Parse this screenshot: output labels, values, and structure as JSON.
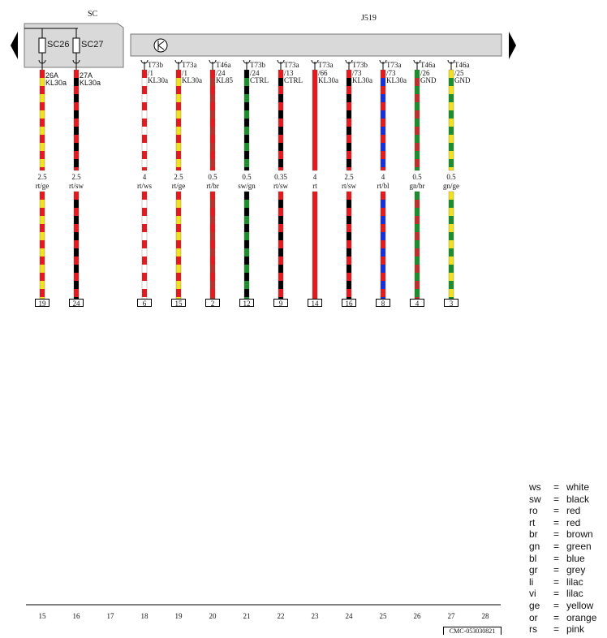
{
  "left_module": {
    "name": "SC",
    "fuses": [
      "SC26",
      "SC27"
    ]
  },
  "right_module": {
    "name": "J519"
  },
  "wires": [
    {
      "col": 0,
      "terminal": "26A",
      "signal": "KL30a",
      "size": "2.5",
      "color_code": "rt/ge",
      "pin": "19",
      "colors": [
        "#e8191c",
        "#f2e11c"
      ]
    },
    {
      "col": 1,
      "terminal": "27A",
      "signal": "KL30a",
      "size": "2.5",
      "color_code": "rt/sw",
      "pin": "24",
      "colors": [
        "#e8191c",
        "#000000"
      ]
    },
    {
      "col": 3,
      "connector": "T73b",
      "conn_pin": "/1",
      "signal": "KL30a",
      "size": "4",
      "color_code": "rt/ws",
      "pin": "6",
      "colors": [
        "#e8191c",
        "#ffffff"
      ]
    },
    {
      "col": 4,
      "connector": "T73a",
      "conn_pin": "/1",
      "signal": "KL30a",
      "size": "2.5",
      "color_code": "rt/ge",
      "pin": "15",
      "colors": [
        "#e8191c",
        "#f2e11c"
      ]
    },
    {
      "col": 5,
      "connector": "T46a",
      "conn_pin": "/24",
      "signal": "KL85",
      "size": "0.5",
      "color_code": "rt/br",
      "pin": "2",
      "colors": [
        "#e8191c",
        "#c0302a"
      ]
    },
    {
      "col": 6,
      "connector": "T73b",
      "conn_pin": "/24",
      "signal": "CTRL",
      "size": "0.5",
      "color_code": "sw/gn",
      "pin": "12",
      "colors": [
        "#000000",
        "#1a8f2b"
      ]
    },
    {
      "col": 7,
      "connector": "T73a",
      "conn_pin": "/13",
      "signal": "CTRL",
      "size": "0.35",
      "color_code": "rt/sw",
      "pin": "9",
      "colors": [
        "#e8191c",
        "#000000"
      ]
    },
    {
      "col": 8,
      "connector": "T73a",
      "conn_pin": "/66",
      "signal": "KL30a",
      "size": "4",
      "color_code": "rt",
      "pin": "14",
      "colors": [
        "#e8191c",
        "#e8191c"
      ]
    },
    {
      "col": 9,
      "connector": "T73b",
      "conn_pin": "/73",
      "signal": "KL30a",
      "size": "2.5",
      "color_code": "rt/sw",
      "pin": "16",
      "colors": [
        "#e8191c",
        "#000000"
      ]
    },
    {
      "col": 10,
      "connector": "T73a",
      "conn_pin": "/73",
      "signal": "KL30a",
      "size": "4",
      "color_code": "rt/bl",
      "pin": "8",
      "colors": [
        "#e8191c",
        "#1530e0"
      ]
    },
    {
      "col": 11,
      "connector": "T46a",
      "conn_pin": "/26",
      "signal": "GND",
      "size": "0.5",
      "color_code": "gn/br",
      "pin": "4",
      "colors": [
        "#1a8f2b",
        "#c0302a"
      ]
    },
    {
      "col": 12,
      "connector": "T46a",
      "conn_pin": "/25",
      "signal": "GND",
      "size": "0.5",
      "color_code": "gn/ge",
      "pin": "3",
      "colors": [
        "#f2e11c",
        "#1a8f2b"
      ]
    }
  ],
  "column_numbers": [
    "15",
    "16",
    "17",
    "18",
    "19",
    "20",
    "21",
    "22",
    "23",
    "24",
    "25",
    "26",
    "27",
    "28"
  ],
  "legend": [
    {
      "code": "ws",
      "eq": "=",
      "name": "white"
    },
    {
      "code": "sw",
      "eq": "=",
      "name": "black"
    },
    {
      "code": "ro",
      "eq": "=",
      "name": "red"
    },
    {
      "code": "rt",
      "eq": "=",
      "name": "red"
    },
    {
      "code": "br",
      "eq": "=",
      "name": "brown"
    },
    {
      "code": "gn",
      "eq": "=",
      "name": "green"
    },
    {
      "code": "bl",
      "eq": "=",
      "name": "blue"
    },
    {
      "code": "gr",
      "eq": "=",
      "name": "grey"
    },
    {
      "code": "li",
      "eq": "=",
      "name": "lilac"
    },
    {
      "code": "vi",
      "eq": "=",
      "name": "lilac"
    },
    {
      "code": "ge",
      "eq": "=",
      "name": "yellow"
    },
    {
      "code": "or",
      "eq": "=",
      "name": "orange"
    },
    {
      "code": "rs",
      "eq": "=",
      "name": "pink"
    }
  ],
  "doc_id": "CMC-053030821"
}
